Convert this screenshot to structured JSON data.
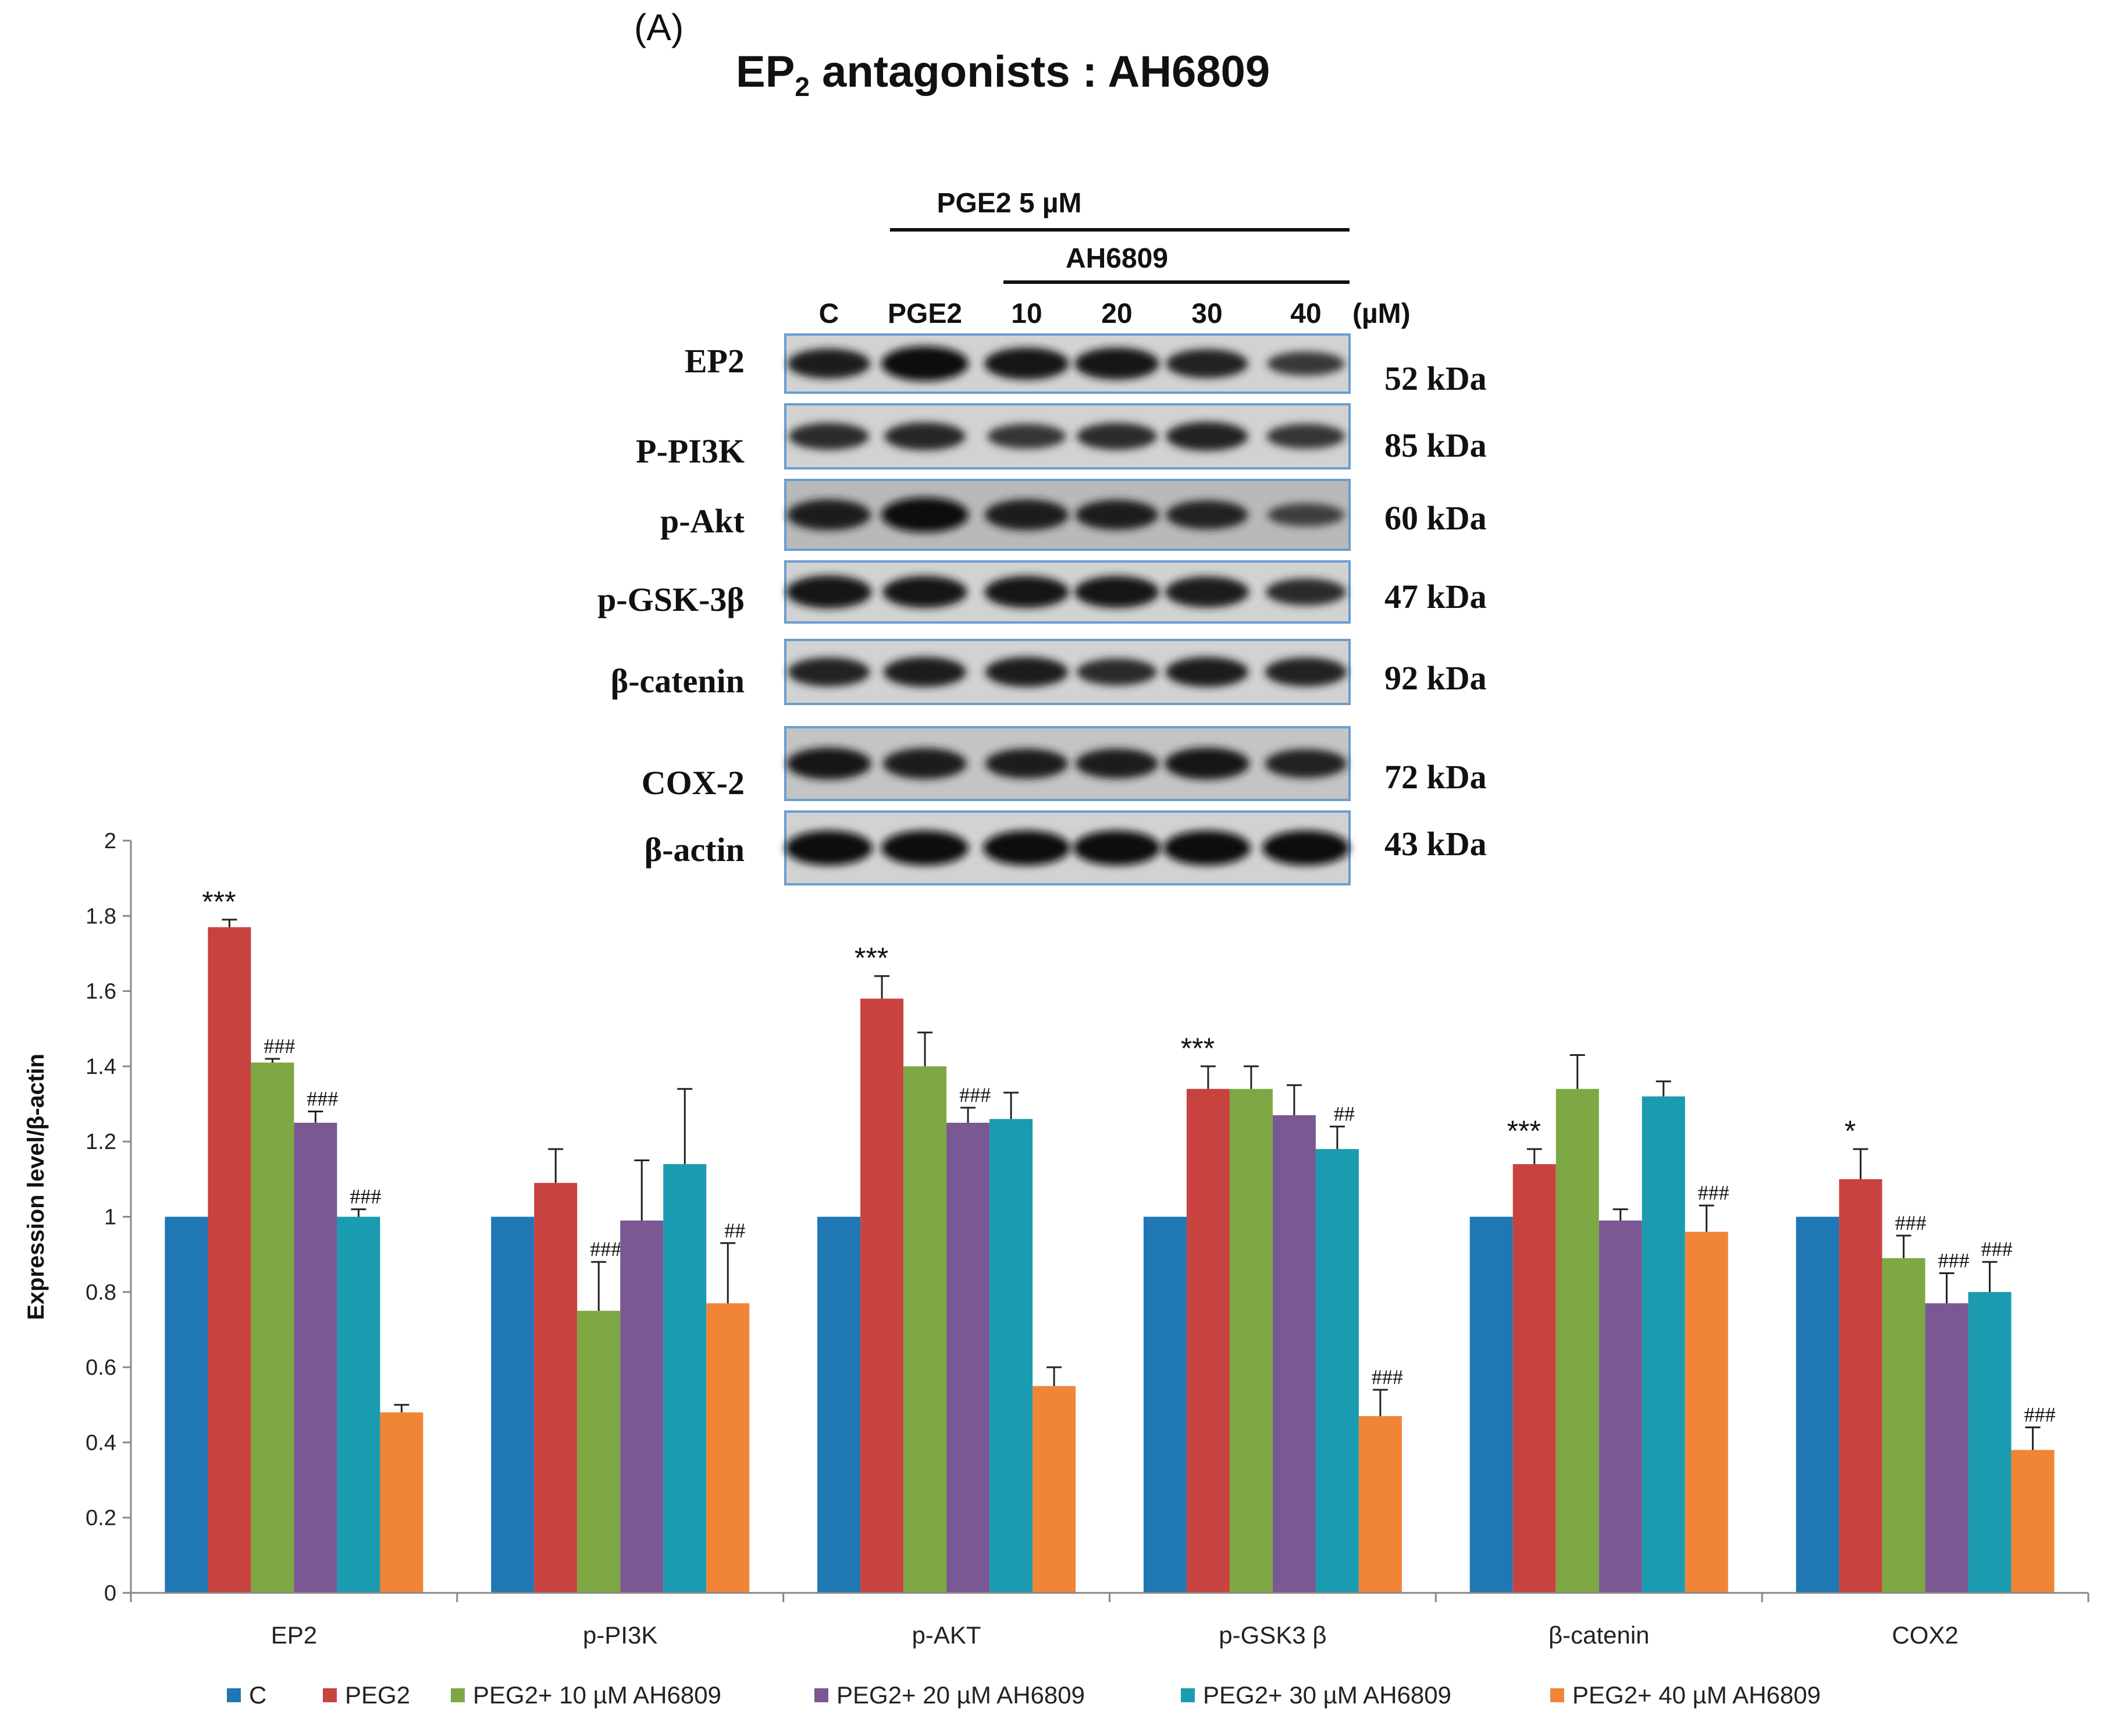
{
  "panel_label": "(A)",
  "title": {
    "prefix": "EP",
    "subscript": "2",
    "suffix": " antagonists : AH6809"
  },
  "blot": {
    "treatment_label": "PGE2  5 µM",
    "antagonist_label": "AH6809",
    "lanes": [
      "C",
      "PGE2",
      "10",
      "20",
      "30",
      "40"
    ],
    "unit_label": "(µM)",
    "rows": [
      {
        "name": "EP2",
        "kda": "52 kDa",
        "intensity": [
          0.75,
          1.0,
          0.85,
          0.85,
          0.7,
          0.45
        ]
      },
      {
        "name": "P-PI3K",
        "kda": "85 kDa",
        "intensity": [
          0.6,
          0.65,
          0.5,
          0.6,
          0.7,
          0.5
        ]
      },
      {
        "name": "p-Akt",
        "kda": "60 kDa",
        "intensity": [
          0.8,
          1.0,
          0.8,
          0.75,
          0.7,
          0.4
        ]
      },
      {
        "name": "p-GSK-3β",
        "kda": "47 kDa",
        "intensity": [
          0.9,
          0.85,
          0.85,
          0.85,
          0.8,
          0.6
        ]
      },
      {
        "name": "β-catenin",
        "kda": "92 kDa",
        "intensity": [
          0.7,
          0.75,
          0.75,
          0.6,
          0.75,
          0.7
        ]
      },
      {
        "name": "COX-2",
        "kda": "72 kDa",
        "intensity": [
          0.85,
          0.8,
          0.75,
          0.75,
          0.85,
          0.7
        ]
      },
      {
        "name": "β-actin",
        "kda": "43 kDa",
        "intensity": [
          1.0,
          1.0,
          1.0,
          1.0,
          1.0,
          1.0
        ]
      }
    ]
  },
  "chart_data": {
    "type": "bar",
    "title": "",
    "xlabel": "",
    "ylabel": "Expression level/β-actin",
    "ylim": [
      0,
      2
    ],
    "yticks": [
      "0",
      "0.2",
      "0.4",
      "0.6",
      "0.8",
      "1",
      "1.2",
      "1.4",
      "1.6",
      "1.8",
      "2"
    ],
    "categories": [
      "EP2",
      "p-PI3K",
      "p-AKT",
      "p-GSK3 β",
      "β-catenin",
      "COX2"
    ],
    "legend_position": "bottom",
    "series": [
      {
        "name": "C",
        "color": "#1f77b4",
        "values": [
          1.0,
          1.0,
          1.0,
          1.0,
          1.0,
          1.0
        ],
        "errors": [
          0,
          0,
          0,
          0,
          0,
          0
        ],
        "sig": [
          "",
          "",
          "",
          "",
          "",
          ""
        ]
      },
      {
        "name": "PEG2",
        "color": "#c8423f",
        "values": [
          1.77,
          1.09,
          1.58,
          1.34,
          1.14,
          1.1
        ],
        "errors": [
          0.02,
          0.09,
          0.06,
          0.06,
          0.04,
          0.08
        ],
        "sig": [
          "***",
          "",
          "***",
          "***",
          "***",
          "*"
        ]
      },
      {
        "name": "PEG2+ 10 µM AH6809",
        "color": "#7ea843",
        "values": [
          1.41,
          0.75,
          1.4,
          1.34,
          1.34,
          0.89
        ],
        "errors": [
          0.01,
          0.13,
          0.09,
          0.06,
          0.09,
          0.06
        ],
        "sig": [
          "###",
          "###",
          "",
          "",
          "",
          "###"
        ]
      },
      {
        "name": "PEG2+ 20 µM AH6809",
        "color": "#7a5893",
        "values": [
          1.25,
          0.99,
          1.25,
          1.27,
          0.99,
          0.77
        ],
        "errors": [
          0.03,
          0.16,
          0.04,
          0.08,
          0.03,
          0.08
        ],
        "sig": [
          "###",
          "",
          "###",
          "",
          "",
          "###"
        ]
      },
      {
        "name": "PEG2+ 30 µM AH6809",
        "color": "#1a9bb0",
        "values": [
          1.0,
          1.14,
          1.26,
          1.18,
          1.32,
          0.8
        ],
        "errors": [
          0.02,
          0.2,
          0.07,
          0.06,
          0.04,
          0.08
        ],
        "sig": [
          "###",
          "",
          "",
          "##",
          "",
          "###"
        ]
      },
      {
        "name": "PEG2+ 40 µM AH6809",
        "color": "#f08537",
        "values": [
          0.48,
          0.77,
          0.55,
          0.47,
          0.96,
          0.38
        ],
        "errors": [
          0.02,
          0.16,
          0.05,
          0.07,
          0.07,
          0.06
        ],
        "sig": [
          "",
          "##",
          "",
          "###",
          "###",
          "###"
        ]
      }
    ]
  }
}
